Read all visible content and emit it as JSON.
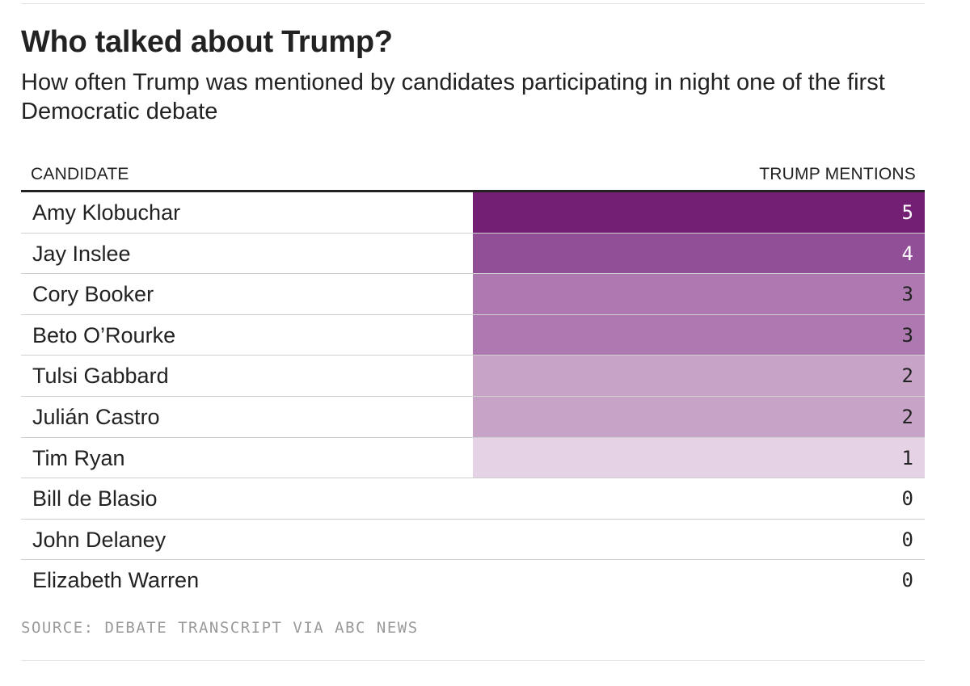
{
  "chart_data": {
    "type": "table",
    "title": "Who talked about Trump?",
    "subtitle": "How often Trump was mentioned by candidates participating in night one of the first Democratic debate",
    "columns": [
      "CANDIDATE",
      "TRUMP MENTIONS"
    ],
    "rows": [
      {
        "candidate": "Amy Klobuchar",
        "mentions": 5
      },
      {
        "candidate": "Jay Inslee",
        "mentions": 4
      },
      {
        "candidate": "Cory Booker",
        "mentions": 3
      },
      {
        "candidate": "Beto O’Rourke",
        "mentions": 3
      },
      {
        "candidate": "Tulsi Gabbard",
        "mentions": 2
      },
      {
        "candidate": "Julián Castro",
        "mentions": 2
      },
      {
        "candidate": "Tim Ryan",
        "mentions": 1
      },
      {
        "candidate": "Bill de Blasio",
        "mentions": 0
      },
      {
        "candidate": "John Delaney",
        "mentions": 0
      },
      {
        "candidate": "Elizabeth Warren",
        "mentions": 0
      }
    ],
    "color_scale": {
      "0": "#ffffff",
      "1": "#e5d3e5",
      "2": "#c7a3c8",
      "3": "#ad79b0",
      "4": "#914f97",
      "5": "#731f74"
    },
    "source": "SOURCE: DEBATE TRANSCRIPT VIA ABC NEWS"
  }
}
